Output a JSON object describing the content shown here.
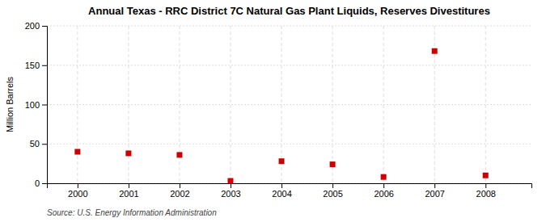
{
  "chart_data": {
    "type": "scatter",
    "title": "Annual Texas - RRC District 7C Natural Gas Plant Liquids, Reserves Divestitures",
    "ylabel": "Million Barrels",
    "source": "Source: U.S. Energy Information Administration",
    "x": [
      2000,
      2001,
      2002,
      2003,
      2004,
      2005,
      2006,
      2007,
      2008
    ],
    "values": [
      40,
      38,
      36,
      3,
      28,
      24,
      8,
      168,
      10
    ],
    "color": "#cc0000",
    "marker": "square",
    "xlim": [
      1999.4,
      2008.9
    ],
    "ylim": [
      0,
      200
    ],
    "xticks": [
      2000,
      2001,
      2002,
      2003,
      2004,
      2005,
      2006,
      2007,
      2008
    ],
    "yticks": [
      0,
      50,
      100,
      150,
      200
    ],
    "grid": true
  }
}
